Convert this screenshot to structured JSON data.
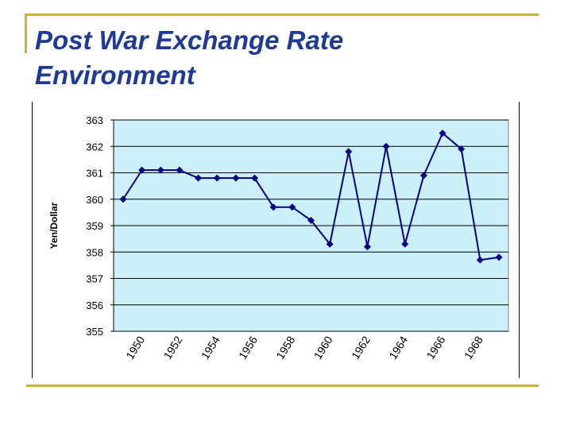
{
  "slide": {
    "title_line1": "Post War Exchange Rate",
    "title_line2": "Environment"
  },
  "colors": {
    "accent": "#c8b331",
    "title": "#1f3a94",
    "plot_bg": "#ccf0fa",
    "series": "#000080",
    "grid": "#000000"
  },
  "chart_data": {
    "type": "line",
    "title": "",
    "xlabel": "",
    "ylabel": "Yen/Dollar",
    "ylim": [
      355,
      363
    ],
    "yticks": [
      355,
      356,
      357,
      358,
      359,
      360,
      361,
      362,
      363
    ],
    "x_tick_labels": [
      "1950",
      "1952",
      "1954",
      "1956",
      "1958",
      "1960",
      "1962",
      "1964",
      "1966",
      "1968"
    ],
    "grid": true,
    "legend": "none",
    "series": [
      {
        "name": "Yen/Dollar",
        "x": [
          1949,
          1950,
          1951,
          1952,
          1953,
          1954,
          1955,
          1956,
          1957,
          1958,
          1959,
          1960,
          1961,
          1962,
          1963,
          1964,
          1965,
          1966,
          1967,
          1968,
          1969
        ],
        "values": [
          360.0,
          361.1,
          361.1,
          361.1,
          360.8,
          360.8,
          360.8,
          360.8,
          359.7,
          359.7,
          359.2,
          358.3,
          361.8,
          358.2,
          362.0,
          358.3,
          360.9,
          362.5,
          361.9,
          357.7,
          357.8
        ]
      }
    ]
  }
}
